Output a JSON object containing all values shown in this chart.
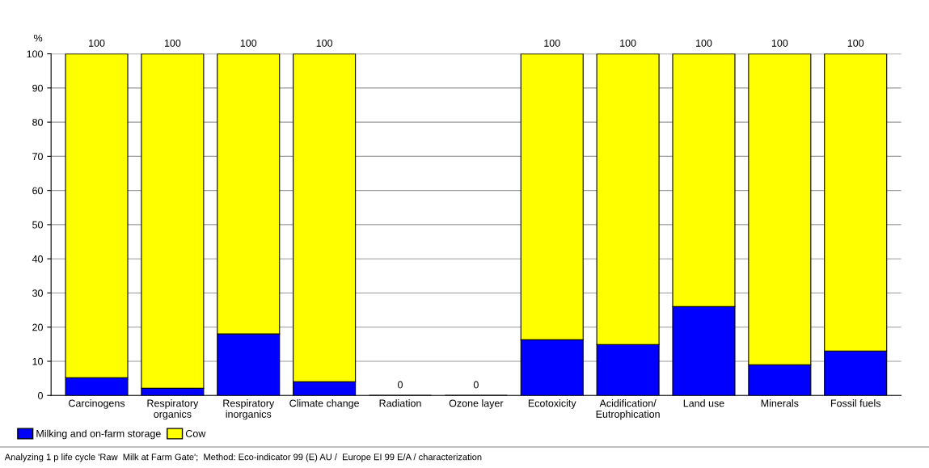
{
  "chart_data": {
    "type": "bar",
    "stacked": true,
    "ylabel": "%",
    "categories": [
      "Carcinogens",
      "Respiratory\norganics",
      "Respiratory\ninorganics",
      "Climate change",
      "Radiation",
      "Ozone layer",
      "Ecotoxicity",
      "Acidification/\nEutrophication",
      "Land use",
      "Minerals",
      "Fossil fuels"
    ],
    "series": [
      {
        "name": "Milking and on-farm storage",
        "color": "#0000ff",
        "values": [
          5.2,
          2.1,
          18,
          4,
          0,
          0,
          16.3,
          14.9,
          26,
          9,
          13
        ]
      },
      {
        "name": "Cow",
        "color": "#ffff00",
        "values": [
          94.8,
          97.9,
          82,
          96,
          0,
          0,
          83.7,
          85.1,
          74,
          91,
          87
        ]
      }
    ],
    "totals": [
      "100",
      "100",
      "100",
      "100",
      "0",
      "0",
      "100",
      "100",
      "100",
      "100",
      "100"
    ],
    "ylim": [
      0,
      100
    ],
    "yticks": [
      0,
      10,
      20,
      30,
      40,
      50,
      60,
      70,
      80,
      90,
      100
    ],
    "grid": "y",
    "legend": "bottom left",
    "annotations": [
      "Analyzing 1 p life cycle 'Raw  Milk at Farm Gate';  Method: Eco-indicator 99 (E) AU /  Europe EI 99 E/A / characterization"
    ]
  }
}
